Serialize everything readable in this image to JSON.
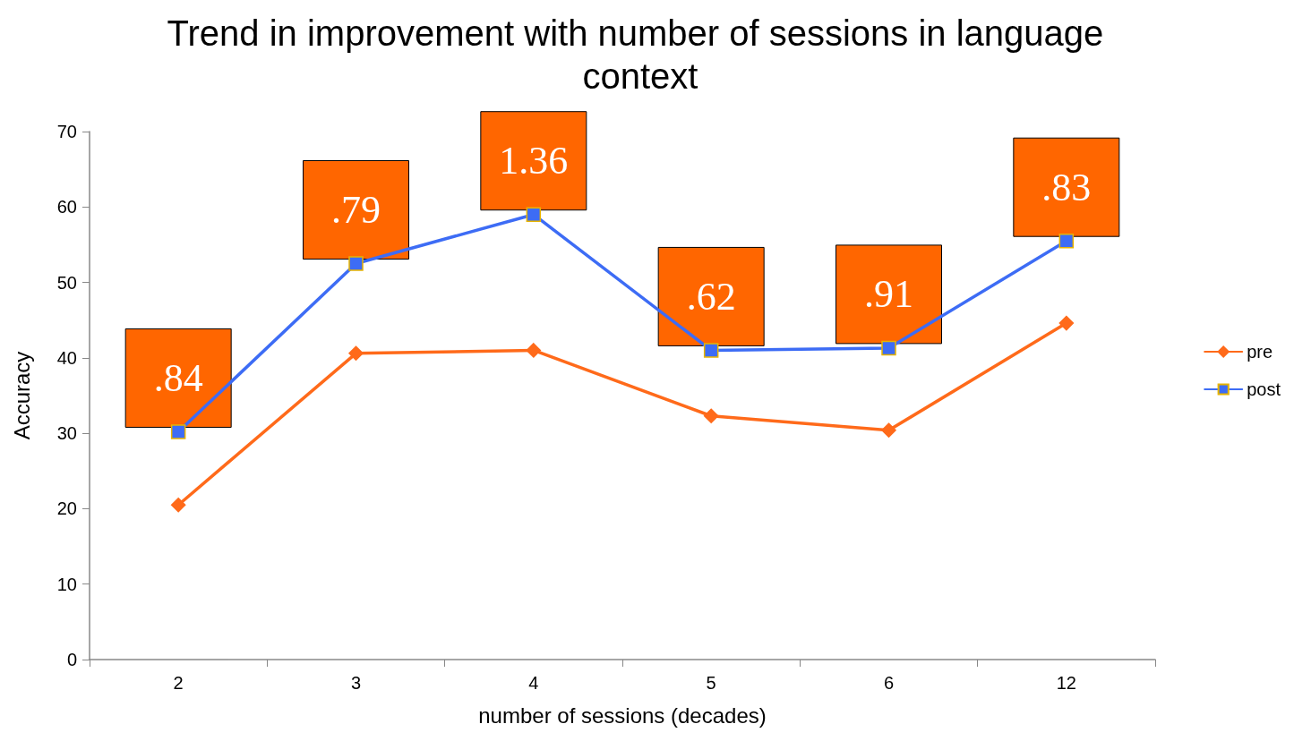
{
  "chart_data": {
    "type": "line",
    "title": "Trend in improvement with number of sessions in language context",
    "xlabel": "number of sessions (decades)",
    "ylabel": "Accuracy",
    "categories": [
      "2",
      "3",
      "4",
      "5",
      "6",
      "12"
    ],
    "series": [
      {
        "name": "pre",
        "color": "#ff6a1a",
        "marker": "diamond",
        "values": [
          20.5,
          40.6,
          41.0,
          32.3,
          30.4,
          44.6
        ]
      },
      {
        "name": "post",
        "color": "#3d6cf5",
        "marker": "square",
        "values": [
          30.2,
          52.5,
          59,
          41.0,
          41.3,
          55.5
        ]
      }
    ],
    "annotations": [
      ".84",
      ".79",
      "1.36",
      ".62",
      ".91",
      ".83"
    ],
    "ylim": [
      0,
      70
    ],
    "yticks": [
      0,
      10,
      20,
      30,
      40,
      50,
      60,
      70
    ],
    "grid": false,
    "legend": "right",
    "line_style": "solid"
  }
}
